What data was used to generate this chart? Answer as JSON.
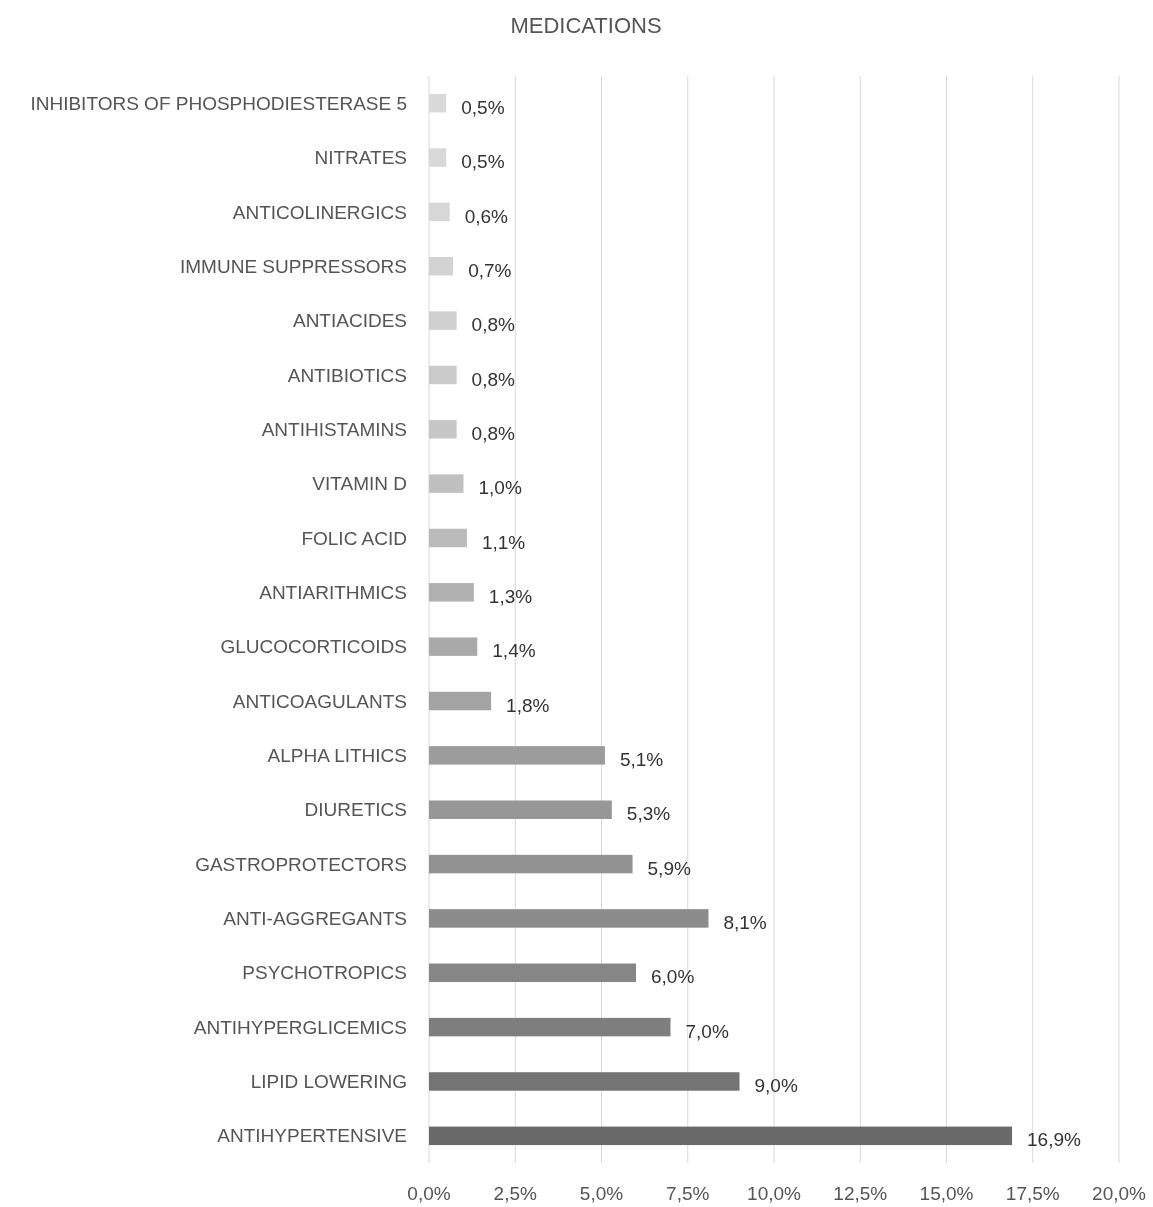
{
  "chart_data": {
    "type": "bar",
    "orientation": "horizontal",
    "title": "MEDICATIONS",
    "categories": [
      "INHIBITORS OF PHOSPHODIESTERASE 5",
      "NITRATES",
      "ANTICOLINERGICS",
      "IMMUNE SUPPRESSORS",
      "ANTIACIDES",
      "ANTIBIOTICS",
      "ANTIHISTAMINS",
      "VITAMIN D",
      "FOLIC ACID",
      "ANTIARITHMICS",
      "GLUCOCORTICOIDS",
      "ANTICOAGULANTS",
      "ALPHA LITHICS",
      "DIURETICS",
      "GASTROPROTECTORS",
      "ANTI-AGGREGANTS",
      "PSYCHOTROPICS",
      "ANTIHYPERGLICEMICS",
      "LIPID LOWERING",
      "ANTIHYPERTENSIVE"
    ],
    "values": [
      0.5,
      0.5,
      0.6,
      0.7,
      0.8,
      0.8,
      0.8,
      1.0,
      1.1,
      1.3,
      1.4,
      1.8,
      5.1,
      5.3,
      5.9,
      8.1,
      6.0,
      7.0,
      9.0,
      16.9
    ],
    "value_labels": [
      "0,5%",
      "0,5%",
      "0,6%",
      "0,7%",
      "0,8%",
      "0,8%",
      "0,8%",
      "1,0%",
      "1,1%",
      "1,3%",
      "1,4%",
      "1,8%",
      "5,1%",
      "5,3%",
      "5,9%",
      "8,1%",
      "6,0%",
      "7,0%",
      "9,0%",
      "16,9%"
    ],
    "colors": [
      "#dadada",
      "#d9d9d9",
      "#d7d7d7",
      "#d3d3d3",
      "#cfcfcf",
      "#cbcbcb",
      "#c6c6c6",
      "#c0c0c0",
      "#bababa",
      "#b0b0b0",
      "#a9a9a9",
      "#a3a3a3",
      "#9c9c9c",
      "#979797",
      "#929292",
      "#8c8c8c",
      "#868686",
      "#7e7e7e",
      "#747474",
      "#6a6a6a"
    ],
    "xlim": [
      0,
      20
    ],
    "xticks": [
      {
        "value": 0,
        "label": "0,0%"
      },
      {
        "value": 2.5,
        "label": "2,5%"
      },
      {
        "value": 5,
        "label": "5,0%"
      },
      {
        "value": 7.5,
        "label": "7,5%"
      },
      {
        "value": 10,
        "label": "10,0%"
      },
      {
        "value": 12.5,
        "label": "12,5%"
      },
      {
        "value": 15,
        "label": "15,0%"
      },
      {
        "value": 17.5,
        "label": "17,5%"
      },
      {
        "value": 20,
        "label": "20,0%"
      }
    ],
    "grid": "x"
  }
}
